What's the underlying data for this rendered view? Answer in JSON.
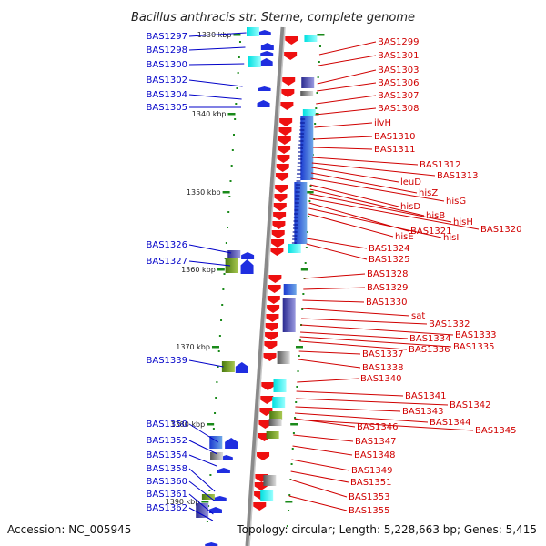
{
  "title": "Bacillus anthracis str. Sterne, complete genome",
  "footer": {
    "accession": "Accession: NC_005945",
    "stats": "Topology: circular; Length: 5,228,663 bp; Genes: 5,415"
  },
  "kbp_ticks": [
    "1330 kbp",
    "1340 kbp",
    "1350 kbp",
    "1360 kbp",
    "1370 kbp",
    "1380 kbp",
    "1390 kbp"
  ],
  "left_genes": [
    "BAS1297",
    "BAS1298",
    "BAS1300",
    "BAS1302",
    "BAS1304",
    "BAS1305",
    "BAS1326",
    "BAS1327",
    "BAS1339",
    "BAS1350",
    "BAS1352",
    "BAS1354",
    "BAS1358",
    "BAS1360",
    "BAS1361",
    "BAS1362"
  ],
  "right_genes": [
    "BAS1299",
    "BAS1301",
    "BAS1303",
    "BAS1306",
    "BAS1307",
    "BAS1308",
    "ilvH",
    "BAS1310",
    "BAS1311",
    "BAS1312",
    "BAS1313",
    "leuD",
    "hisZ",
    "hisG",
    "hisD",
    "hisB",
    "hisH",
    "BAS1320",
    "BAS1321",
    "hisI",
    "hisE",
    "BAS1324",
    "BAS1325",
    "BAS1328",
    "BAS1329",
    "BAS1330",
    "sat",
    "BAS1332",
    "BAS1333",
    "BAS1334",
    "BAS1335",
    "BAS1336",
    "BAS1337",
    "BAS1338",
    "BAS1340",
    "BAS1341",
    "BAS1342",
    "BAS1343",
    "BAS1344",
    "BAS1345",
    "BAS1346",
    "BAS1347",
    "BAS1348",
    "BAS1349",
    "BAS1351",
    "BAS1353",
    "BAS1355"
  ],
  "colors": {
    "left_label": "#0000c8",
    "right_label": "#d00000",
    "forward_arrow": "#1f2ee0",
    "reverse_arrow": "#ee1010",
    "backbone": "#8a8a8a",
    "tick": "#1a8a1a"
  }
}
